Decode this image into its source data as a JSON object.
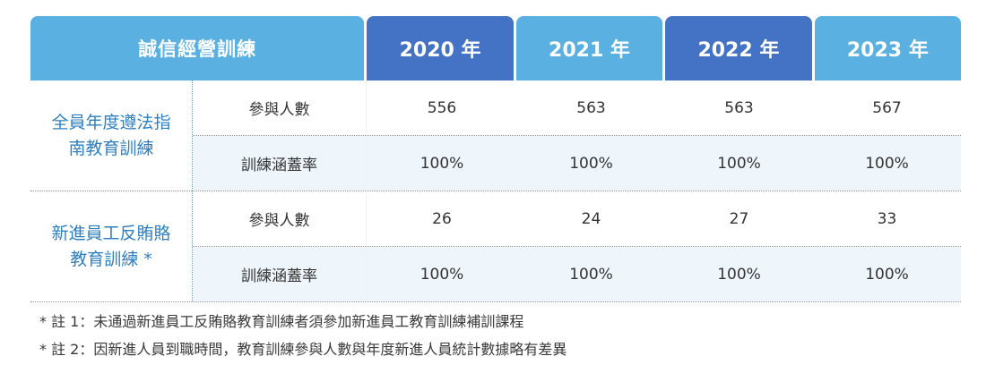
{
  "table": {
    "title": "誠信經營訓練",
    "years": [
      "2020 年",
      "2021 年",
      "2022 年",
      "2023 年"
    ],
    "groups": [
      {
        "label_lines": [
          "全員年度遵法指",
          "南教育訓練"
        ],
        "rows": [
          {
            "metric": "參與人數",
            "values": [
              "556",
              "563",
              "563",
              "567"
            ]
          },
          {
            "metric": "訓練涵蓋率",
            "values": [
              "100%",
              "100%",
              "100%",
              "100%"
            ]
          }
        ]
      },
      {
        "label_lines": [
          "新進員工反賄賂",
          "教育訓練 *"
        ],
        "rows": [
          {
            "metric": "參與人數",
            "values": [
              "26",
              "24",
              "27",
              "33"
            ]
          },
          {
            "metric": "訓練涵蓋率",
            "values": [
              "100%",
              "100%",
              "100%",
              "100%"
            ]
          }
        ]
      }
    ]
  },
  "notes": [
    "* 註 1：未通過新進員工反賄賂教育訓練者須參加新進員工教育訓練補訓課程",
    "* 註 2：因新進人員到職時間，教育訓練參與人數與年度新進人員統計數據略有差異"
  ],
  "colors": {
    "header_light": "#5ab0e0",
    "header_dark": "#4472c4",
    "group_label": "#2f7fc0",
    "row_shade": "#eef5fb"
  }
}
